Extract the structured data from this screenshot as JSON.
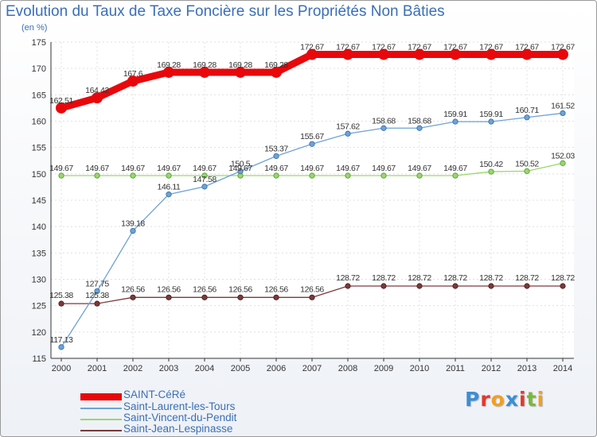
{
  "chart_data": {
    "type": "line",
    "title": "Evolution du Taux de Taxe Foncière sur les Propriétés Non Bâties",
    "ylabel": "(en %)",
    "xlabel": "",
    "ylim": [
      115,
      175
    ],
    "yticks": [
      115,
      120,
      125,
      130,
      135,
      140,
      145,
      150,
      155,
      160,
      165,
      170,
      175
    ],
    "grid": true,
    "legend_position": "bottom-left",
    "categories": [
      "2000",
      "2001",
      "2002",
      "2003",
      "2004",
      "2005",
      "2006",
      "2007",
      "2008",
      "2009",
      "2010",
      "2011",
      "2012",
      "2013",
      "2014"
    ],
    "series": [
      {
        "name": "SAINT-CéRé",
        "color": "#e8080c",
        "values": [
          162.51,
          164.42,
          167.6,
          169.28,
          169.28,
          169.28,
          169.28,
          172.67,
          172.67,
          172.67,
          172.67,
          172.67,
          172.67,
          172.67,
          172.67
        ],
        "labels": [
          "162.51",
          "164.42",
          "167.6",
          "169.28",
          "169.28",
          "169.28",
          "169.28",
          "172.67",
          "172.67",
          "172.67",
          "172.67",
          "172.67",
          "172.67",
          "172.67",
          "172.67"
        ]
      },
      {
        "name": "Saint-Laurent-les-Tours",
        "color": "#6fa2d6",
        "values": [
          117.13,
          127.75,
          139.18,
          146.11,
          147.58,
          150.5,
          153.37,
          155.67,
          157.62,
          158.68,
          158.68,
          159.91,
          159.91,
          160.71,
          161.52
        ],
        "labels": [
          "117.13",
          "127.75",
          "139.18",
          "146.11",
          "147.58",
          "150.5",
          "153.37",
          "155.67",
          "157.62",
          "158.68",
          "158.68",
          "159.91",
          "159.91",
          "160.71",
          "161.52"
        ]
      },
      {
        "name": "Saint-Vincent-du-Pendit",
        "color": "#9ad66b",
        "values": [
          149.67,
          149.67,
          149.67,
          149.67,
          149.67,
          149.67,
          149.67,
          149.67,
          149.67,
          149.67,
          149.67,
          149.67,
          150.42,
          150.52,
          152.03
        ],
        "labels": [
          "149.67",
          "149.67",
          "149.67",
          "149.67",
          "149.67",
          "149.67",
          "149.67",
          "149.67",
          "149.67",
          "149.67",
          "149.67",
          "149.67",
          "150.42",
          "150.52",
          "152.03"
        ]
      },
      {
        "name": "Saint-Jean-Lespinasse",
        "color": "#7a3a3a",
        "values": [
          125.38,
          125.38,
          126.56,
          126.56,
          126.56,
          126.56,
          126.56,
          126.56,
          128.72,
          128.72,
          128.72,
          128.72,
          128.72,
          128.72,
          128.72
        ],
        "labels": [
          "125.38",
          "125.38",
          "126.56",
          "126.56",
          "126.56",
          "126.56",
          "126.56",
          "126.56",
          "128.72",
          "128.72",
          "128.72",
          "128.72",
          "128.72",
          "128.72",
          "128.72"
        ]
      }
    ]
  },
  "legend": {
    "items": [
      {
        "label": "SAINT-CéRé",
        "color": "#e8080c"
      },
      {
        "label": "Saint-Laurent-les-Tours",
        "color": "#6fa2d6"
      },
      {
        "label": "Saint-Vincent-du-Pendit",
        "color": "#9ad66b"
      },
      {
        "label": "Saint-Jean-Lespinasse",
        "color": "#7a3a3a"
      }
    ]
  },
  "logo": {
    "text": "Proxiti",
    "colors": [
      "#3a8fd6",
      "#e03a2a",
      "#f0a020",
      "#3a8fd6",
      "#e03a2a",
      "#7ab83a",
      "#f0a020"
    ]
  }
}
